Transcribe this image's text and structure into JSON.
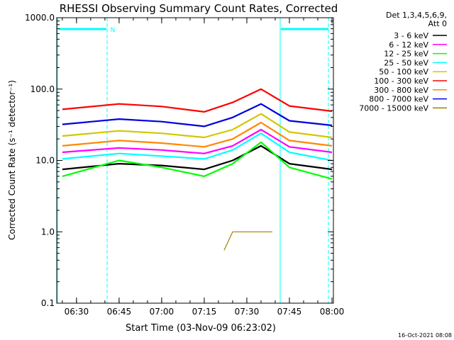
{
  "chart_data": {
    "type": "line",
    "title": "RHESSI Observing Summary Count Rates, Corrected",
    "xlabel": "Start Time (03-Nov-09 06:23:02)",
    "ylabel": "Corrected Count Rate (s⁻¹ detector⁻¹)",
    "yscale": "log",
    "ylim": [
      0.1,
      1000
    ],
    "xlim": [
      "06:23:02",
      "08:00:30"
    ],
    "ytick_labels": [
      "0.1",
      "1.0",
      "10.0",
      "100.0",
      "1000.0"
    ],
    "xtick_labels": [
      "06:30",
      "06:45",
      "07:00",
      "07:15",
      "07:30",
      "07:45",
      "08:00"
    ],
    "legend_header": [
      "Det 1,3,4,5,6,9,",
      "Att 0"
    ],
    "legend_position": "right",
    "flag_label": "N",
    "timestamp": "16-Oct-2021 08:08",
    "accent_color": "#00ffff",
    "series": [
      {
        "name": "3 - 6 keV",
        "color": "#000000",
        "x": [
          "06:25",
          "06:45",
          "07:00",
          "07:15",
          "07:25",
          "07:35",
          "07:45",
          "08:00"
        ],
        "values": [
          7.5,
          9.0,
          8.5,
          7.5,
          10.0,
          16.0,
          9.0,
          7.5
        ]
      },
      {
        "name": "6 - 12 keV",
        "color": "#ff00ff",
        "x": [
          "06:25",
          "06:45",
          "07:00",
          "07:15",
          "07:25",
          "07:35",
          "07:45",
          "08:00"
        ],
        "values": [
          13.0,
          15.0,
          14.0,
          12.5,
          16.0,
          27.0,
          15.5,
          13.0
        ]
      },
      {
        "name": "12 - 25 keV",
        "color": "#00ff00",
        "x": [
          "06:25",
          "06:45",
          "07:00",
          "07:15",
          "07:25",
          "07:35",
          "07:45",
          "08:00"
        ],
        "values": [
          6.0,
          10.0,
          8.0,
          6.0,
          9.0,
          18.0,
          8.0,
          5.5
        ]
      },
      {
        "name": "25 - 50 keV",
        "color": "#00ffff",
        "x": [
          "06:25",
          "06:45",
          "07:00",
          "07:15",
          "07:25",
          "07:35",
          "07:45",
          "08:00"
        ],
        "values": [
          10.5,
          12.5,
          11.5,
          10.5,
          14.0,
          24.0,
          13.0,
          10.0
        ]
      },
      {
        "name": "50 - 100 keV",
        "color": "#d0c800",
        "x": [
          "06:25",
          "06:45",
          "07:00",
          "07:15",
          "07:25",
          "07:35",
          "07:45",
          "08:00"
        ],
        "values": [
          22.0,
          26.0,
          24.0,
          21.0,
          27.0,
          45.0,
          25.0,
          21.0
        ]
      },
      {
        "name": "100 - 300 keV",
        "color": "#ff0000",
        "x": [
          "06:25",
          "06:45",
          "07:00",
          "07:15",
          "07:25",
          "07:35",
          "07:45",
          "08:00"
        ],
        "values": [
          52.0,
          62.0,
          57.0,
          48.0,
          65.0,
          100.0,
          58.0,
          49.0
        ]
      },
      {
        "name": "300 - 800 keV",
        "color": "#ff8800",
        "x": [
          "06:25",
          "06:45",
          "07:00",
          "07:15",
          "07:25",
          "07:35",
          "07:45",
          "08:00"
        ],
        "values": [
          16.0,
          19.0,
          17.5,
          15.5,
          20.0,
          34.0,
          19.0,
          16.0
        ]
      },
      {
        "name": "800 - 7000 keV",
        "color": "#0000dd",
        "x": [
          "06:25",
          "06:45",
          "07:00",
          "07:15",
          "07:25",
          "07:35",
          "07:45",
          "08:00"
        ],
        "values": [
          32.0,
          38.0,
          35.0,
          30.0,
          40.0,
          62.0,
          36.0,
          31.0
        ]
      },
      {
        "name": "7000 - 15000 keV",
        "color": "#a08000",
        "x": [
          "07:22",
          "07:25",
          "07:32",
          "07:38",
          "07:39"
        ],
        "values": [
          0.55,
          1.0,
          1.0,
          1.0,
          1.0
        ]
      }
    ]
  }
}
